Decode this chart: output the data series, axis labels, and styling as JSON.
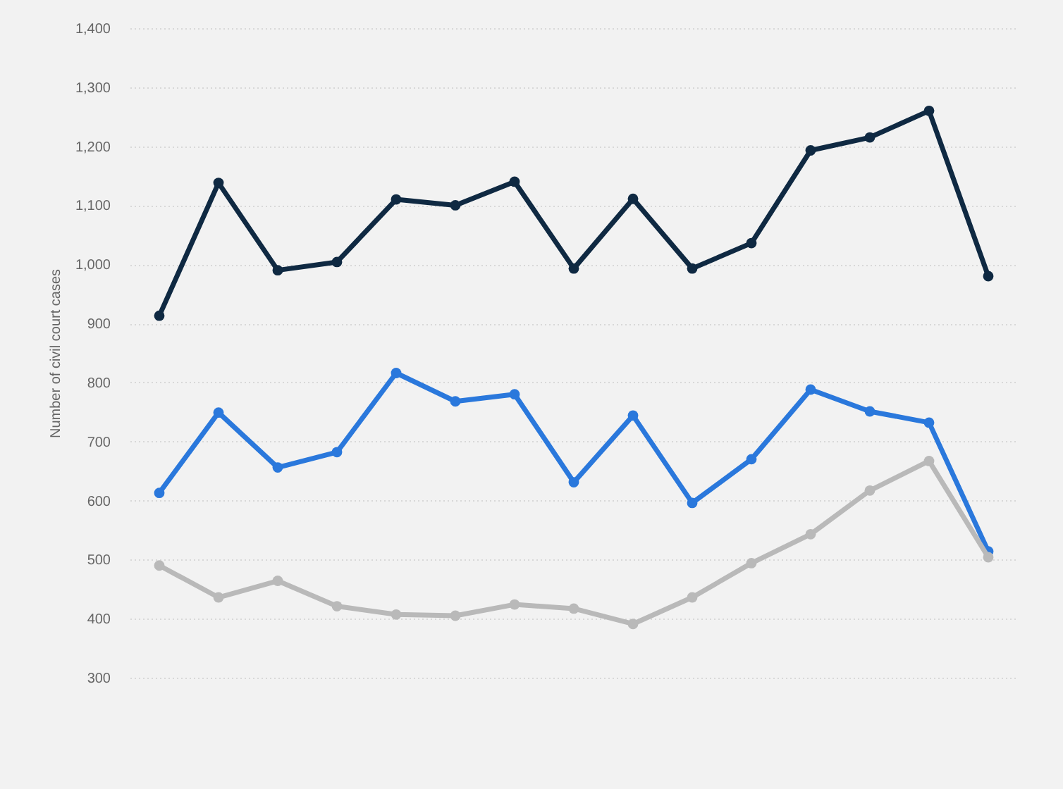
{
  "chart_data": {
    "type": "line",
    "ylabel": "Number of civil court cases",
    "categories": [
      null,
      null,
      null,
      null,
      null,
      null,
      null,
      null,
      null,
      null,
      null,
      null,
      null,
      null,
      null
    ],
    "series": [
      {
        "color": "#0f2942",
        "values": [
          913,
          1138,
          990,
          1004,
          1110,
          1100,
          1140,
          993,
          1111,
          993,
          1036,
          1193,
          1215,
          1260,
          980
        ]
      },
      {
        "color": "#2a78dc",
        "values": [
          613,
          749,
          656,
          682,
          816,
          768,
          780,
          631,
          744,
          596,
          670,
          788,
          751,
          732,
          514
        ]
      },
      {
        "color": "#b9b9b9",
        "values": [
          490,
          436,
          464,
          421,
          407,
          405,
          424,
          417,
          391,
          436,
          494,
          543,
          617,
          667,
          504
        ]
      }
    ],
    "ylim": [
      300,
      1400
    ],
    "yticks": [
      300,
      400,
      500,
      600,
      700,
      800,
      900,
      {
        "value": 1000,
        "label": "1,000"
      },
      {
        "value": 1100,
        "label": "1,100"
      },
      {
        "value": 1200,
        "label": "1,200"
      },
      {
        "value": 1300,
        "label": "1,300"
      },
      {
        "value": 1400,
        "label": "1,400"
      }
    ],
    "grid": "y",
    "tick_labels": "y",
    "marker": "circle",
    "line_style": "solid"
  }
}
